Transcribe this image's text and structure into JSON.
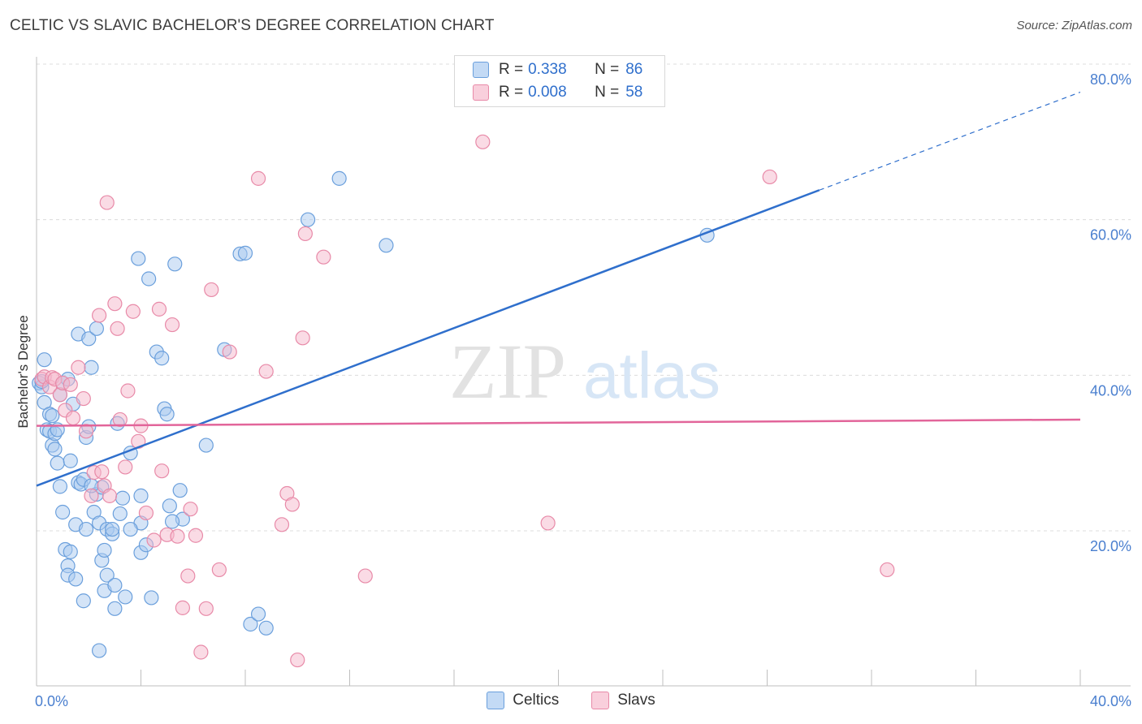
{
  "title": "CELTIC VS SLAVIC BACHELOR'S DEGREE CORRELATION CHART",
  "source": "Source: ZipAtlas.com",
  "watermark": {
    "zip": "ZIP",
    "atlas": "atlas"
  },
  "legend": {
    "rows": [
      {
        "r_label": "R =",
        "r_value": "0.338",
        "n_label": "N =",
        "n_value": "86"
      },
      {
        "r_label": "R =",
        "r_value": "0.008",
        "n_label": "N =",
        "n_value": "58"
      }
    ]
  },
  "bottom_legend": [
    "Celtics",
    "Slavs"
  ],
  "colors": {
    "celtics_fill": "#a9c9f0",
    "celtics_stroke": "#6a9fdc",
    "celtics_line": "#2f6fcc",
    "slavs_fill": "#f6b8cc",
    "slavs_stroke": "#e88aa8",
    "slavs_line": "#e2659a",
    "grid": "#dcdcdc",
    "axis_text": "#4a7fcf"
  },
  "chart_data": {
    "type": "scatter",
    "title": "CELTIC VS SLAVIC BACHELOR'S DEGREE CORRELATION CHART",
    "xlabel": "",
    "ylabel": "Bachelor's Degree",
    "xlim": [
      0,
      40
    ],
    "ylim": [
      0,
      84
    ],
    "x_tick_labels": [
      "0.0%",
      "40.0%"
    ],
    "y_ticks": [
      20,
      40,
      60,
      80
    ],
    "y_tick_labels": [
      "20.0%",
      "40.0%",
      "60.0%",
      "80.0%"
    ],
    "series": [
      {
        "name": "Celtics",
        "r": 0.338,
        "n": 86,
        "trend": {
          "x0": 0,
          "y0": 25.8,
          "x1": 30,
          "y1": 63.8,
          "dash_to_x": 40,
          "dash_to_y": 76.4
        },
        "points": [
          [
            0.1,
            39
          ],
          [
            0.2,
            38.5
          ],
          [
            0.3,
            42
          ],
          [
            0.3,
            36.5
          ],
          [
            0.4,
            33
          ],
          [
            0.5,
            35
          ],
          [
            0.5,
            32.8
          ],
          [
            0.6,
            31
          ],
          [
            0.6,
            34.8
          ],
          [
            0.7,
            30.5
          ],
          [
            0.7,
            32.5
          ],
          [
            0.8,
            28.7
          ],
          [
            0.9,
            25.7
          ],
          [
            0.9,
            37.5
          ],
          [
            1.0,
            39
          ],
          [
            1.0,
            22.4
          ],
          [
            1.1,
            17.6
          ],
          [
            1.2,
            15.5
          ],
          [
            1.2,
            14.3
          ],
          [
            1.3,
            17.3
          ],
          [
            1.3,
            29
          ],
          [
            1.4,
            36.3
          ],
          [
            1.5,
            13.8
          ],
          [
            1.5,
            20.8
          ],
          [
            1.6,
            45.3
          ],
          [
            1.6,
            26.2
          ],
          [
            1.7,
            26
          ],
          [
            1.8,
            11
          ],
          [
            1.8,
            26.6
          ],
          [
            1.9,
            32
          ],
          [
            1.9,
            20.2
          ],
          [
            2.0,
            44.7
          ],
          [
            2.0,
            33.4
          ],
          [
            2.1,
            41
          ],
          [
            2.2,
            22.4
          ],
          [
            2.3,
            46
          ],
          [
            2.3,
            24.7
          ],
          [
            2.4,
            21
          ],
          [
            2.4,
            4.6
          ],
          [
            2.5,
            25.6
          ],
          [
            2.5,
            16.2
          ],
          [
            2.6,
            17.5
          ],
          [
            2.6,
            12.3
          ],
          [
            2.7,
            20.2
          ],
          [
            2.7,
            14.3
          ],
          [
            2.9,
            19.6
          ],
          [
            2.9,
            20.2
          ],
          [
            3.0,
            10
          ],
          [
            3.0,
            13
          ],
          [
            3.1,
            33.8
          ],
          [
            3.2,
            22.2
          ],
          [
            3.3,
            24.2
          ],
          [
            3.4,
            11.5
          ],
          [
            3.6,
            30
          ],
          [
            3.9,
            55
          ],
          [
            4.0,
            17.2
          ],
          [
            4.0,
            21
          ],
          [
            4.0,
            24.5
          ],
          [
            4.2,
            18.2
          ],
          [
            4.3,
            52.4
          ],
          [
            4.6,
            43
          ],
          [
            4.8,
            42.2
          ],
          [
            4.9,
            35.7
          ],
          [
            5.0,
            35
          ],
          [
            5.1,
            23.2
          ],
          [
            5.3,
            54.3
          ],
          [
            5.5,
            25.2
          ],
          [
            5.6,
            21.5
          ],
          [
            6.5,
            31
          ],
          [
            7.2,
            43.3
          ],
          [
            7.8,
            55.6
          ],
          [
            8.0,
            55.7
          ],
          [
            8.2,
            8
          ],
          [
            8.5,
            9.3
          ],
          [
            8.8,
            7.5
          ],
          [
            10.4,
            60
          ],
          [
            11.6,
            65.3
          ],
          [
            13.4,
            56.7
          ],
          [
            25.7,
            58
          ],
          [
            1.2,
            39.5
          ],
          [
            0.2,
            39.2
          ],
          [
            0.8,
            33
          ],
          [
            2.1,
            25.8
          ],
          [
            3.6,
            20.2
          ],
          [
            5.2,
            21.2
          ],
          [
            4.4,
            11.4
          ]
        ]
      },
      {
        "name": "Slavs",
        "r": 0.008,
        "n": 58,
        "trend": {
          "x0": 0,
          "y0": 33.5,
          "x1": 40,
          "y1": 34.3
        },
        "points": [
          [
            0.2,
            39.5
          ],
          [
            0.3,
            39.8
          ],
          [
            0.5,
            38.5
          ],
          [
            0.6,
            39.7
          ],
          [
            0.7,
            39.5
          ],
          [
            0.9,
            37.5
          ],
          [
            1.0,
            39
          ],
          [
            1.1,
            35.5
          ],
          [
            1.3,
            38.8
          ],
          [
            1.4,
            34.5
          ],
          [
            1.6,
            41
          ],
          [
            1.8,
            37
          ],
          [
            1.9,
            32.8
          ],
          [
            2.1,
            24.5
          ],
          [
            2.2,
            27.5
          ],
          [
            2.4,
            47.7
          ],
          [
            2.5,
            27.6
          ],
          [
            2.6,
            25.8
          ],
          [
            2.7,
            62.2
          ],
          [
            2.8,
            24.5
          ],
          [
            3.0,
            49.2
          ],
          [
            3.1,
            46
          ],
          [
            3.2,
            34.3
          ],
          [
            3.4,
            28.2
          ],
          [
            3.5,
            38
          ],
          [
            3.7,
            48.2
          ],
          [
            3.9,
            31.5
          ],
          [
            4.0,
            33.5
          ],
          [
            4.2,
            22.3
          ],
          [
            4.5,
            18.8
          ],
          [
            4.7,
            48.5
          ],
          [
            4.8,
            27.7
          ],
          [
            5.0,
            19.5
          ],
          [
            5.2,
            46.5
          ],
          [
            5.4,
            19.3
          ],
          [
            5.6,
            10.1
          ],
          [
            5.8,
            14.2
          ],
          [
            5.9,
            22.8
          ],
          [
            6.1,
            19.4
          ],
          [
            6.3,
            4.4
          ],
          [
            6.5,
            10
          ],
          [
            6.7,
            51
          ],
          [
            7.0,
            15
          ],
          [
            7.4,
            43
          ],
          [
            8.5,
            65.3
          ],
          [
            8.8,
            40.5
          ],
          [
            9.4,
            20.8
          ],
          [
            9.6,
            24.8
          ],
          [
            9.8,
            23.4
          ],
          [
            10.0,
            3.4
          ],
          [
            10.2,
            44.8
          ],
          [
            10.3,
            58.2
          ],
          [
            11.0,
            55.2
          ],
          [
            12.6,
            14.2
          ],
          [
            17.1,
            70
          ],
          [
            19.6,
            21
          ],
          [
            28.1,
            65.5
          ],
          [
            32.6,
            15
          ]
        ]
      }
    ]
  }
}
